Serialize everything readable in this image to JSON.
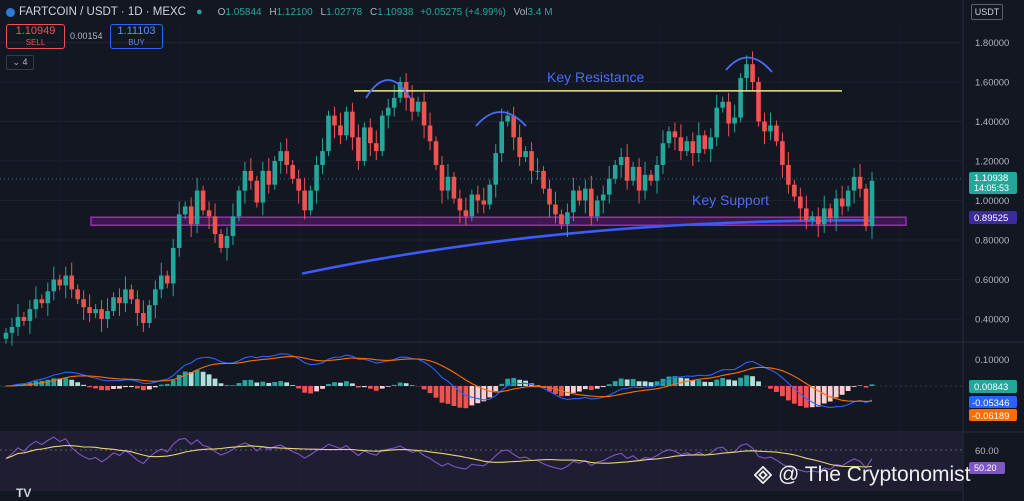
{
  "header": {
    "symbol": "FARTCOIN / USDT · 1D · MEXC",
    "open_label": "O",
    "open": "1.05844",
    "high_label": "H",
    "high": "1.12100",
    "low_label": "L",
    "low": "1.02778",
    "close_label": "C",
    "close": "1.10938",
    "change": "+0.05275 (+4.99%)",
    "vol_label": "Vol",
    "vol": "3.4 M",
    "currency": "USDT"
  },
  "trade": {
    "sell_price": "1.10949",
    "sell_label": "SELL",
    "spread": "0.00154",
    "buy_price": "1.11103",
    "buy_label": "BUY",
    "indicator_toggle": "4"
  },
  "annotations": {
    "resistance": "Key Resistance",
    "support": "Key Support"
  },
  "price_tags": {
    "last": "1.10938",
    "countdown": "14:05:53",
    "support": "0.89525"
  },
  "macd_tags": {
    "hist": "0.00843",
    "macd": "-0.05346",
    "signal": "-0.06189"
  },
  "rsi_tags": {
    "level": "60.00",
    "value": "50.20"
  },
  "watermark": "@ The Cryptonomist",
  "brand": "TV",
  "colors": {
    "up": "#26a69a",
    "down": "#ef5350",
    "resistance": "#f0e68c",
    "support_band": "#9c27b0",
    "ma": "#3d5afe",
    "arc": "#4a6cf7",
    "macd": "#2962ff",
    "signal": "#ff6d00",
    "rsi": "#7e57c2",
    "rsi_ma": "#e8d27a"
  },
  "chart_data": {
    "type": "candlestick",
    "panes": [
      "price",
      "MACD",
      "RSI"
    ],
    "y_ticks": [
      0.4,
      0.6,
      0.8,
      1.0,
      1.2,
      1.4,
      1.6,
      1.8
    ],
    "y_tick_labels": [
      "0.40000",
      "0.60000",
      "0.80000",
      "1.00000",
      "1.20000",
      "1.40000",
      "1.60000",
      "1.80000"
    ],
    "macd_ticks": [
      0.1
    ],
    "macd_tick_labels": [
      "0.10000"
    ],
    "resistance_level": 1.555,
    "support_level": 0.895,
    "last_close": 1.10938,
    "series": [
      {
        "name": "FARTCOIN/USDT",
        "closes": [
          0.33,
          0.36,
          0.41,
          0.39,
          0.45,
          0.5,
          0.48,
          0.54,
          0.6,
          0.57,
          0.62,
          0.55,
          0.5,
          0.46,
          0.43,
          0.45,
          0.4,
          0.44,
          0.51,
          0.48,
          0.55,
          0.5,
          0.43,
          0.38,
          0.47,
          0.55,
          0.62,
          0.58,
          0.76,
          0.93,
          0.97,
          0.88,
          1.05,
          0.95,
          0.92,
          0.83,
          0.76,
          0.82,
          0.92,
          1.05,
          1.15,
          1.1,
          0.99,
          1.15,
          1.08,
          1.2,
          1.25,
          1.18,
          1.11,
          1.05,
          0.95,
          1.05,
          1.18,
          1.25,
          1.43,
          1.38,
          1.33,
          1.45,
          1.32,
          1.2,
          1.37,
          1.29,
          1.25,
          1.43,
          1.47,
          1.52,
          1.6,
          1.52,
          1.45,
          1.5,
          1.38,
          1.3,
          1.18,
          1.05,
          1.12,
          1.01,
          0.95,
          0.92,
          1.03,
          1.0,
          0.98,
          1.08,
          1.24,
          1.4,
          1.43,
          1.32,
          1.22,
          1.25,
          1.15,
          1.15,
          1.06,
          0.98,
          0.93,
          0.88,
          0.94,
          1.05,
          1.0,
          1.06,
          0.92,
          1.0,
          1.03,
          1.11,
          1.18,
          1.22,
          1.1,
          1.17,
          1.05,
          1.13,
          1.1,
          1.18,
          1.29,
          1.35,
          1.32,
          1.25,
          1.3,
          1.24,
          1.33,
          1.26,
          1.32,
          1.47,
          1.5,
          1.39,
          1.42,
          1.62,
          1.69,
          1.6,
          1.4,
          1.35,
          1.38,
          1.3,
          1.18,
          1.08,
          1.02,
          0.96,
          0.9,
          0.92,
          0.88,
          0.96,
          0.91,
          1.01,
          0.97,
          1.05,
          1.12,
          1.06,
          0.87,
          1.1
        ]
      }
    ]
  }
}
